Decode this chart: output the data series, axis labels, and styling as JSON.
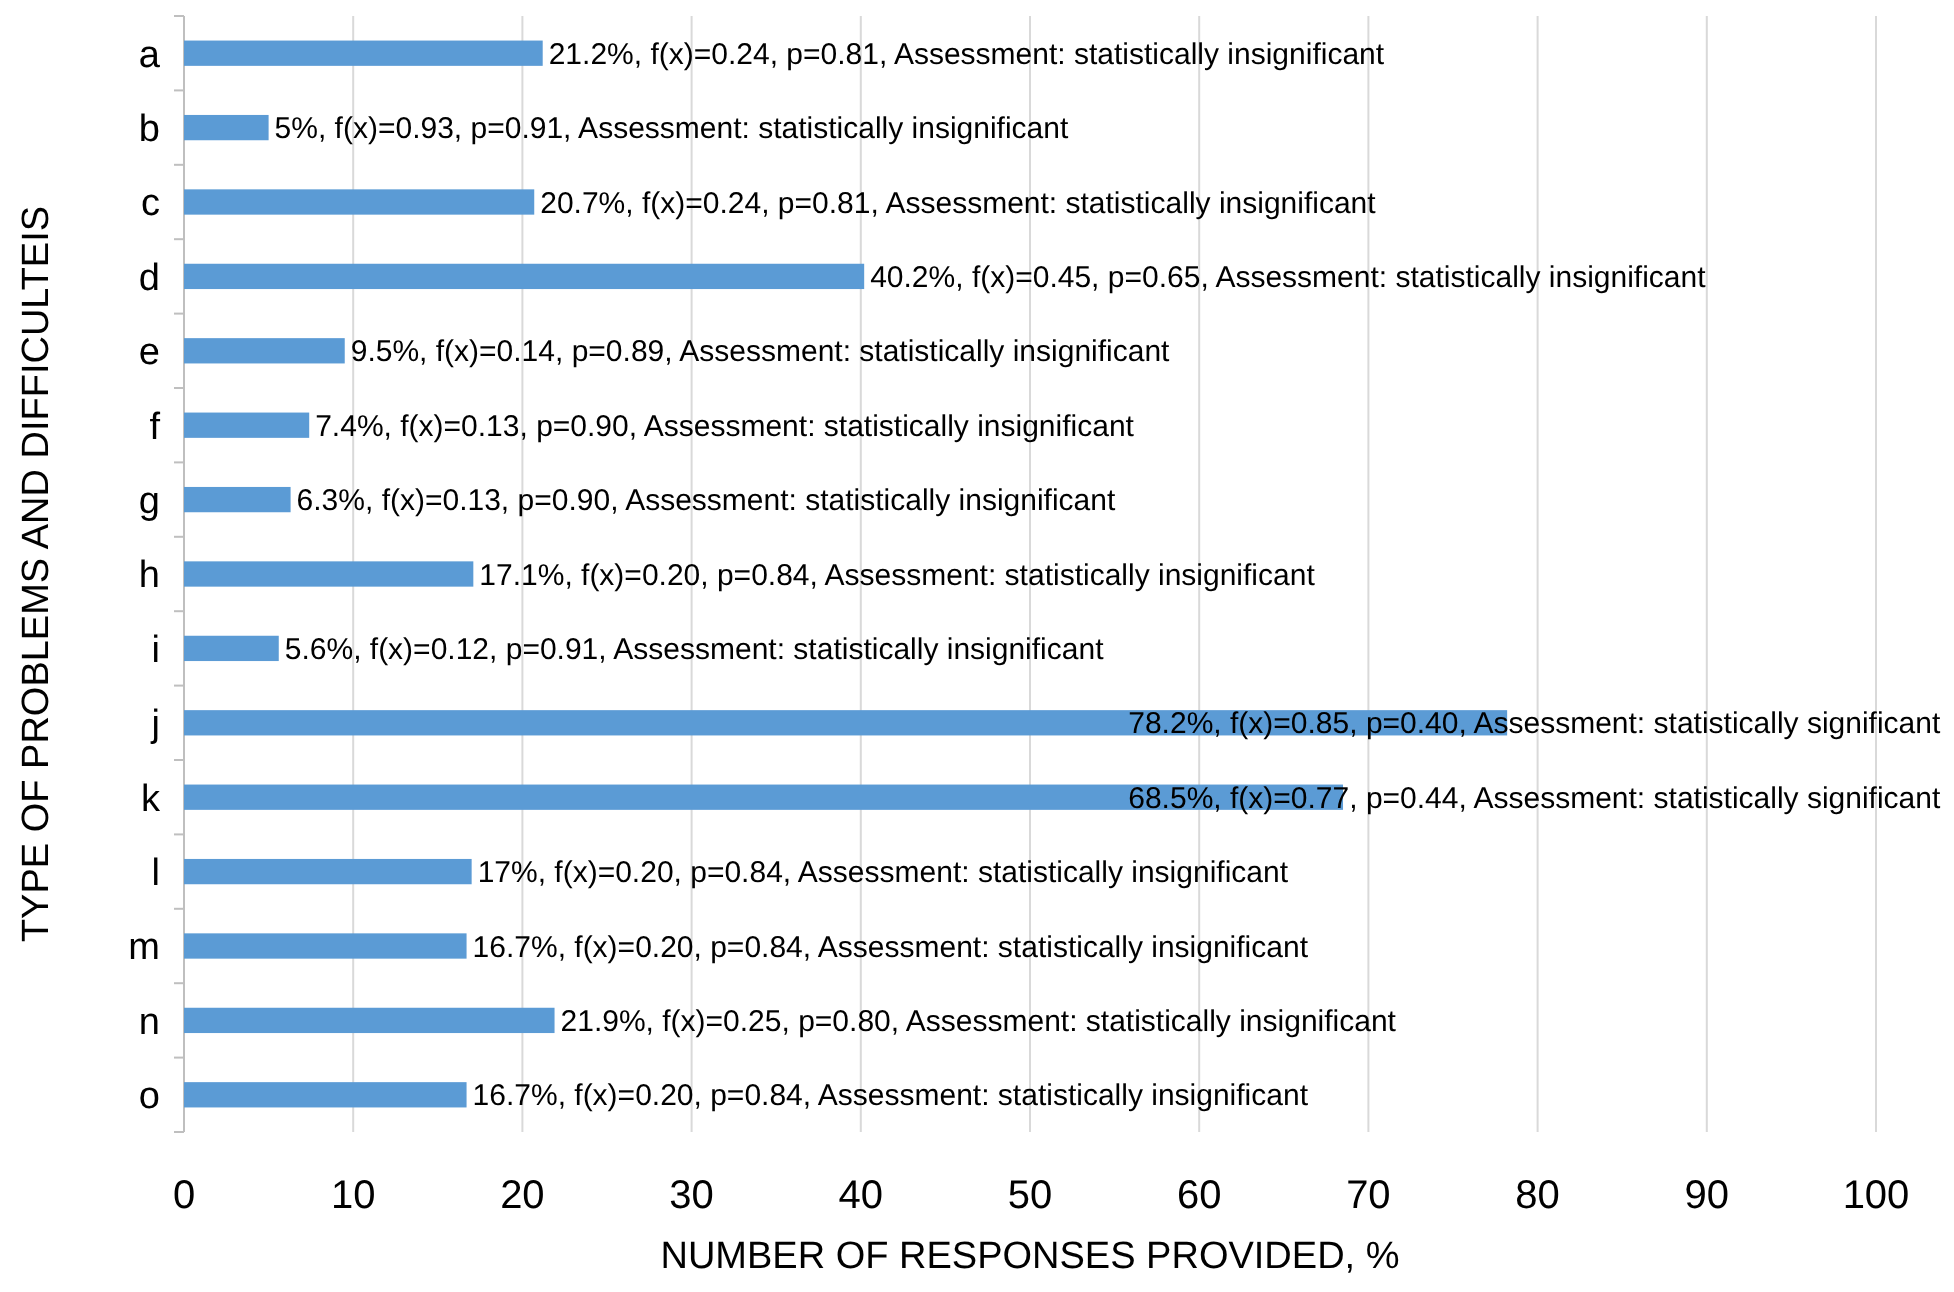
{
  "chart_data": {
    "type": "bar",
    "orientation": "horizontal",
    "xlabel": "NUMBER OF RESPONSES PROVIDED, %",
    "ylabel": "TYPE OF PROBLEMS AND DIFFICULTEIS",
    "categories": [
      "a",
      "b",
      "c",
      "d",
      "e",
      "f",
      "g",
      "h",
      "i",
      "j",
      "k",
      "l",
      "m",
      "n",
      "o"
    ],
    "series": [
      {
        "color": "#5b9bd5",
        "values": [
          21.2,
          5,
          20.7,
          40.2,
          9.5,
          7.4,
          6.3,
          17.1,
          5.6,
          78.2,
          68.5,
          17,
          16.7,
          21.9,
          16.7
        ],
        "value_labels": [
          "21.2%, f(x)=0.24, p=0.81, Assessment: statistically insignificant",
          "5%, f(x)=0.93, p=0.91, Assessment: statistically insignificant",
          "20.7%, f(x)=0.24, p=0.81, Assessment: statistically insignificant",
          "40.2%, f(x)=0.45, p=0.65, Assessment: statistically insignificant",
          "9.5%, f(x)=0.14, p=0.89, Assessment: statistically insignificant",
          "7.4%, f(x)=0.13, p=0.90, Assessment: statistically insignificant",
          "6.3%, f(x)=0.13, p=0.90, Assessment: statistically insignificant",
          "17.1%, f(x)=0.20, p=0.84, Assessment: statistically insignificant",
          "5.6%, f(x)=0.12, p=0.91, Assessment: statistically insignificant",
          "78.2%, f(x)=0.85, p=0.40, Assessment: statistically significant",
          "68.5%, f(x)=0.77, p=0.44, Assessment: statistically significant",
          "17%, f(x)=0.20, p=0.84, Assessment: statistically insignificant",
          "16.7%, f(x)=0.20, p=0.84, Assessment: statistically insignificant",
          "21.9%, f(x)=0.25, p=0.80, Assessment: statistically insignificant",
          "16.7%, f(x)=0.20, p=0.84, Assessment: statistically insignificant"
        ]
      }
    ],
    "xlim": [
      0,
      100
    ],
    "xticks": [
      0,
      10,
      20,
      30,
      40,
      50,
      60,
      70,
      80,
      90,
      100
    ],
    "grid": "x"
  }
}
